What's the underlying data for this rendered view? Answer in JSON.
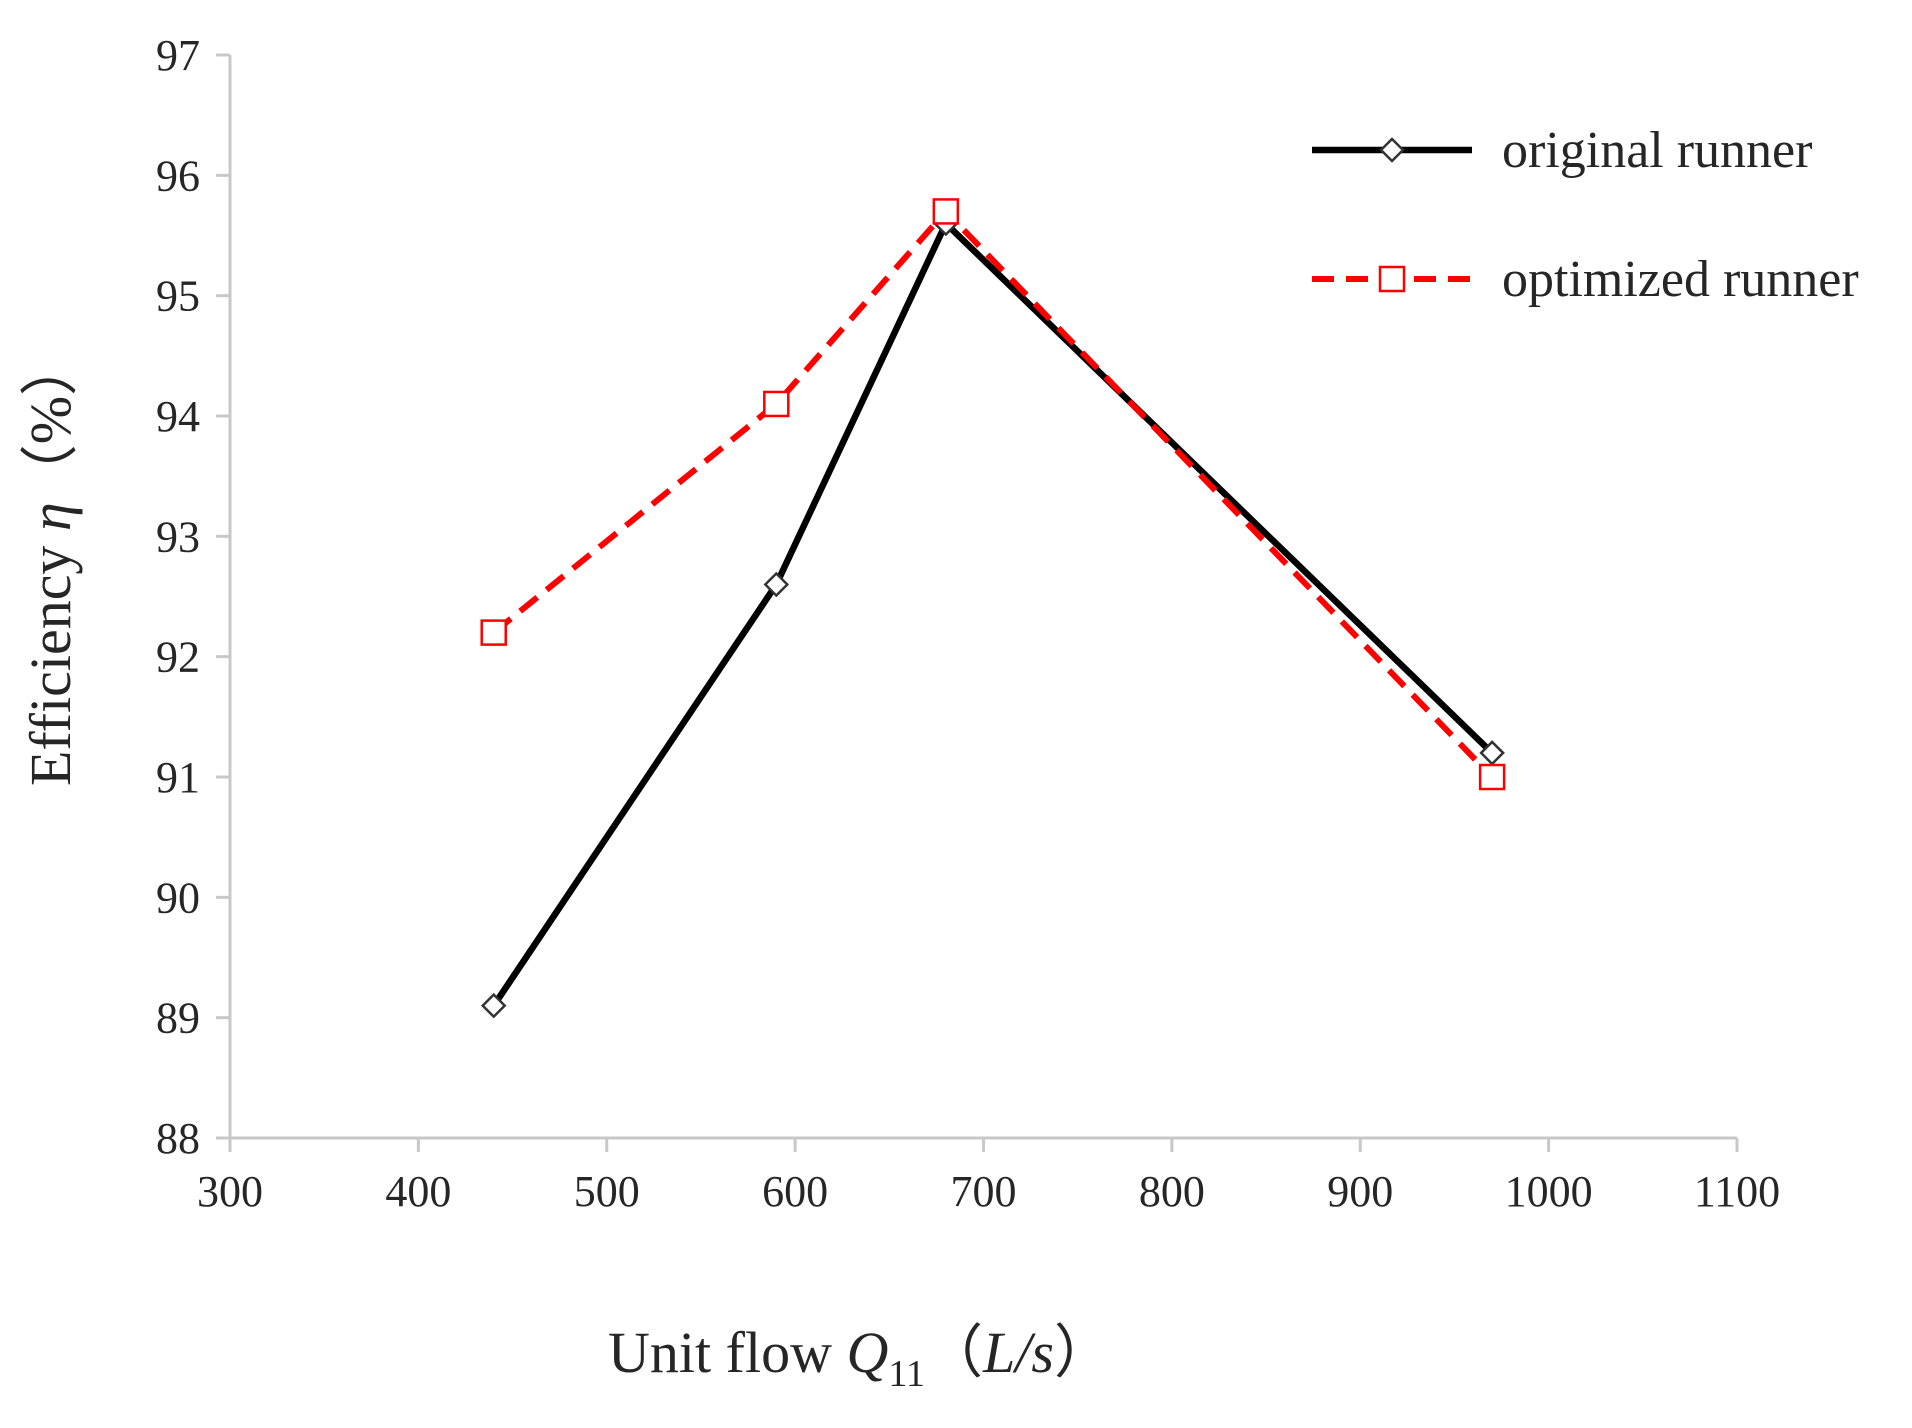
{
  "chart_data": {
    "type": "line",
    "title": "",
    "xlabel": {
      "prefix": "Unit flow ",
      "symbol": "Q",
      "subscript": "11",
      "unit_open": "（",
      "unit": "L/s",
      "unit_close": "）"
    },
    "ylabel": {
      "prefix": "Efficiency ",
      "symbol": "η",
      "unit": "（%）"
    },
    "xlim": [
      300,
      1100
    ],
    "ylim": [
      88,
      97
    ],
    "xticks": [
      300,
      400,
      500,
      600,
      700,
      800,
      900,
      1000,
      1100
    ],
    "yticks": [
      88,
      89,
      90,
      91,
      92,
      93,
      94,
      95,
      96,
      97
    ],
    "grid": false,
    "legend_position": "top-right",
    "series": [
      {
        "name": "original runner",
        "color": "#000000",
        "line_style": "solid",
        "marker": "diamond",
        "x": [
          440,
          590,
          680,
          970
        ],
        "y": [
          89.1,
          92.6,
          95.6,
          91.2
        ]
      },
      {
        "name": "optimized runner",
        "color": "#ff0000",
        "line_style": "dashed",
        "marker": "square",
        "x": [
          440,
          590,
          680,
          970
        ],
        "y": [
          92.2,
          94.1,
          95.7,
          91.0
        ]
      }
    ]
  }
}
